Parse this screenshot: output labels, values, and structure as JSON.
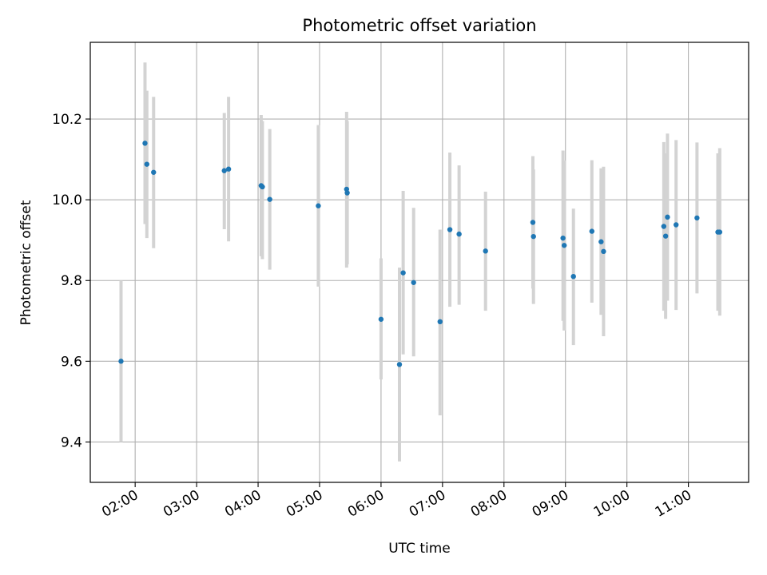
{
  "chart_data": {
    "type": "scatter",
    "title": "Photometric offset variation",
    "xlabel": "UTC time",
    "ylabel": "Photometric offset",
    "x_unit": "hours UTC",
    "xlim": [
      1.27,
      11.98
    ],
    "ylim": [
      9.3,
      10.39
    ],
    "x_ticks": [
      {
        "value": 2,
        "label": "02:00"
      },
      {
        "value": 3,
        "label": "03:00"
      },
      {
        "value": 4,
        "label": "04:00"
      },
      {
        "value": 5,
        "label": "05:00"
      },
      {
        "value": 6,
        "label": "06:00"
      },
      {
        "value": 7,
        "label": "07:00"
      },
      {
        "value": 8,
        "label": "08:00"
      },
      {
        "value": 9,
        "label": "09:00"
      },
      {
        "value": 10,
        "label": "10:00"
      },
      {
        "value": 11,
        "label": "11:00"
      }
    ],
    "y_ticks": [
      {
        "value": 9.4,
        "label": "9.4"
      },
      {
        "value": 9.6,
        "label": "9.6"
      },
      {
        "value": 9.8,
        "label": "9.8"
      },
      {
        "value": 10.0,
        "label": "10.0"
      },
      {
        "value": 10.2,
        "label": "10.2"
      }
    ],
    "grid": true,
    "point_color": "#1f77b4",
    "errorbar_color": "#d3d3d3",
    "points": [
      {
        "x": 1.77,
        "y": 9.6,
        "lo": 9.4,
        "hi": 9.8
      },
      {
        "x": 2.16,
        "y": 10.14,
        "lo": 9.94,
        "hi": 10.34
      },
      {
        "x": 2.19,
        "y": 10.088,
        "lo": 9.905,
        "hi": 10.27
      },
      {
        "x": 2.3,
        "y": 10.068,
        "lo": 9.88,
        "hi": 10.255
      },
      {
        "x": 3.45,
        "y": 10.072,
        "lo": 9.927,
        "hi": 10.215
      },
      {
        "x": 3.52,
        "y": 10.076,
        "lo": 9.897,
        "hi": 10.255
      },
      {
        "x": 4.05,
        "y": 10.035,
        "lo": 9.86,
        "hi": 10.21
      },
      {
        "x": 4.07,
        "y": 10.032,
        "lo": 9.853,
        "hi": 10.195
      },
      {
        "x": 4.19,
        "y": 10.001,
        "lo": 9.827,
        "hi": 10.175
      },
      {
        "x": 4.98,
        "y": 9.985,
        "lo": 9.785,
        "hi": 10.185
      },
      {
        "x": 5.44,
        "y": 10.026,
        "lo": 9.832,
        "hi": 10.218
      },
      {
        "x": 5.45,
        "y": 10.017,
        "lo": 9.84,
        "hi": 10.195
      },
      {
        "x": 6.0,
        "y": 9.704,
        "lo": 9.555,
        "hi": 9.855
      },
      {
        "x": 6.3,
        "y": 9.592,
        "lo": 9.352,
        "hi": 9.832
      },
      {
        "x": 6.36,
        "y": 9.819,
        "lo": 9.617,
        "hi": 10.022
      },
      {
        "x": 6.53,
        "y": 9.795,
        "lo": 9.612,
        "hi": 9.98
      },
      {
        "x": 6.96,
        "y": 9.698,
        "lo": 9.466,
        "hi": 9.926
      },
      {
        "x": 7.12,
        "y": 9.926,
        "lo": 9.735,
        "hi": 10.117
      },
      {
        "x": 7.27,
        "y": 9.915,
        "lo": 9.74,
        "hi": 10.085
      },
      {
        "x": 7.7,
        "y": 9.873,
        "lo": 9.725,
        "hi": 10.02
      },
      {
        "x": 8.47,
        "y": 9.944,
        "lo": 9.78,
        "hi": 10.108
      },
      {
        "x": 8.48,
        "y": 9.909,
        "lo": 9.742,
        "hi": 10.075
      },
      {
        "x": 8.96,
        "y": 9.905,
        "lo": 9.7,
        "hi": 10.122
      },
      {
        "x": 8.98,
        "y": 9.887,
        "lo": 9.676,
        "hi": 10.097
      },
      {
        "x": 9.13,
        "y": 9.81,
        "lo": 9.64,
        "hi": 9.978
      },
      {
        "x": 9.43,
        "y": 9.922,
        "lo": 9.745,
        "hi": 10.098
      },
      {
        "x": 9.58,
        "y": 9.896,
        "lo": 9.715,
        "hi": 10.078
      },
      {
        "x": 9.62,
        "y": 9.872,
        "lo": 9.662,
        "hi": 10.082
      },
      {
        "x": 10.6,
        "y": 9.934,
        "lo": 9.725,
        "hi": 10.143
      },
      {
        "x": 10.63,
        "y": 9.91,
        "lo": 9.705,
        "hi": 10.115
      },
      {
        "x": 10.66,
        "y": 9.957,
        "lo": 9.75,
        "hi": 10.164
      },
      {
        "x": 10.8,
        "y": 9.938,
        "lo": 9.727,
        "hi": 10.148
      },
      {
        "x": 11.14,
        "y": 9.955,
        "lo": 9.768,
        "hi": 10.142
      },
      {
        "x": 11.48,
        "y": 9.92,
        "lo": 9.725,
        "hi": 10.115
      },
      {
        "x": 11.51,
        "y": 9.92,
        "lo": 9.713,
        "hi": 10.128
      }
    ]
  }
}
